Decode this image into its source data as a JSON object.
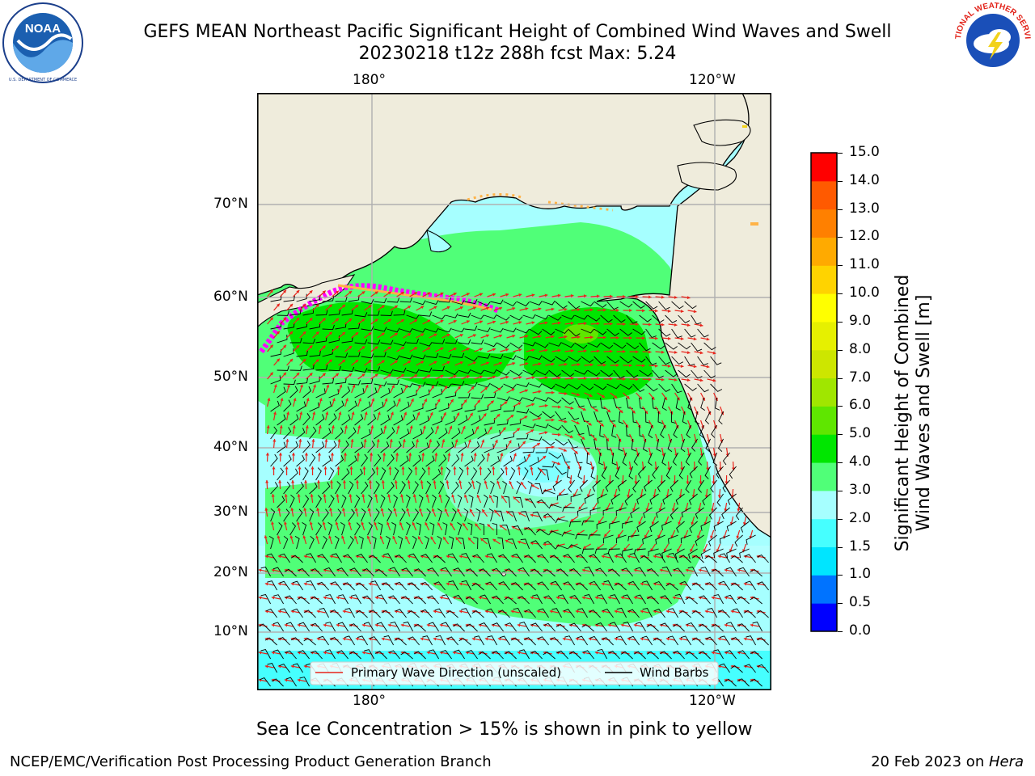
{
  "header": {
    "title_line1": "GEFS MEAN Northeast Pacific Significant Height of Combined Wind Waves and Swell",
    "title_line2": "20230218 t12z 288h fcst   Max: 5.24"
  },
  "logos": {
    "left": {
      "name": "noaa-logo",
      "text": "NOAA"
    },
    "right": {
      "name": "nws-logo",
      "text": "NATIONAL WEATHER SERVICE"
    }
  },
  "map": {
    "lon_top": [
      "180°",
      "120°W"
    ],
    "lon_bottom": [
      "180°",
      "120°W"
    ],
    "lat_labels": [
      "70°N",
      "60°N",
      "50°N",
      "40°N",
      "30°N",
      "20°N",
      "10°N"
    ],
    "colors": {
      "land": "#efecdc",
      "ice_pink": "#ff00ff",
      "ice_orange": "#ffb347",
      "wave_arrow": "#e8231a",
      "wind_barb": "#000000",
      "grid": "#b0b0b0"
    }
  },
  "legend": {
    "wave_label": "Primary Wave Direction (unscaled)",
    "wind_label": "Wind Barbs"
  },
  "colorbar": {
    "label_line1": "Significant Height of Combined",
    "label_line2": "Wind Waves and Swell [m]",
    "ticks": [
      "0.0",
      "0.5",
      "1.0",
      "1.5",
      "2.0",
      "3.0",
      "4.0",
      "5.0",
      "6.0",
      "7.0",
      "8.0",
      "9.0",
      "10.0",
      "11.0",
      "12.0",
      "13.0",
      "14.0",
      "15.0"
    ],
    "colors": [
      "#0000ff",
      "#0073ff",
      "#00e5ff",
      "#46ffff",
      "#a6ffff",
      "#50ff78",
      "#00e600",
      "#5fe600",
      "#a0e600",
      "#cde600",
      "#e6f000",
      "#ffff00",
      "#ffd300",
      "#ffaa00",
      "#ff8000",
      "#ff5a00",
      "#ff0000"
    ]
  },
  "chart_data": {
    "type": "heatmap",
    "variable": "Significant Height of Combined Wind Waves and Swell [m]",
    "max_value": 5.24,
    "scale_range": [
      0,
      15
    ],
    "regions": [
      {
        "area": "Gulf of Alaska / Bering Sea",
        "level_m": "4.0-5.0"
      },
      {
        "area": "Central North Pacific near 50N",
        "level_m": "3.0-4.0"
      },
      {
        "area": "Subtropical Pacific 20N-35N",
        "level_m": "3.0-4.0"
      },
      {
        "area": "Low-centre near 38N 150W",
        "level_m": "1.5-2.0"
      },
      {
        "area": "Tropics 0-15N",
        "level_m": "2.0-3.0"
      }
    ]
  },
  "footer": {
    "caption": "Sea Ice Concentration > 15% is shown in pink to yellow",
    "left": "NCEP/EMC/Verification Post Processing Product Generation Branch",
    "date": "20 Feb 2023 on ",
    "machine": "Hera"
  }
}
